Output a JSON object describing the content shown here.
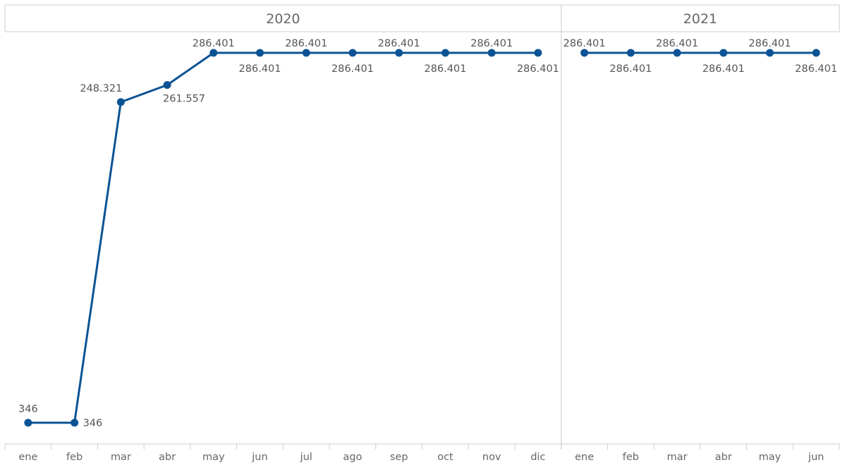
{
  "chart_data": {
    "type": "line",
    "title": "",
    "xlabel": "",
    "ylabel": "",
    "ylim": [
      0,
      300000
    ],
    "grid": false,
    "legend": "none",
    "color": "#0b5394",
    "groups": [
      {
        "year": "2020",
        "months": [
          "ene",
          "feb",
          "mar",
          "abr",
          "may",
          "jun",
          "jul",
          "ago",
          "sep",
          "oct",
          "nov",
          "dic"
        ],
        "values": [
          346,
          346,
          248321,
          261557,
          286401,
          286401,
          286401,
          286401,
          286401,
          286401,
          286401,
          286401
        ],
        "labels": [
          "346",
          "346",
          "248.321",
          "261.557",
          "286.401",
          "286.401",
          "286.401",
          "286.401",
          "286.401",
          "286.401",
          "286.401",
          "286.401"
        ]
      },
      {
        "year": "2021",
        "months": [
          "ene",
          "feb",
          "mar",
          "abr",
          "may",
          "jun"
        ],
        "values": [
          286401,
          286401,
          286401,
          286401,
          286401,
          286401
        ],
        "labels": [
          "286.401",
          "286.401",
          "286.401",
          "286.401",
          "286.401",
          "286.401"
        ]
      }
    ]
  }
}
